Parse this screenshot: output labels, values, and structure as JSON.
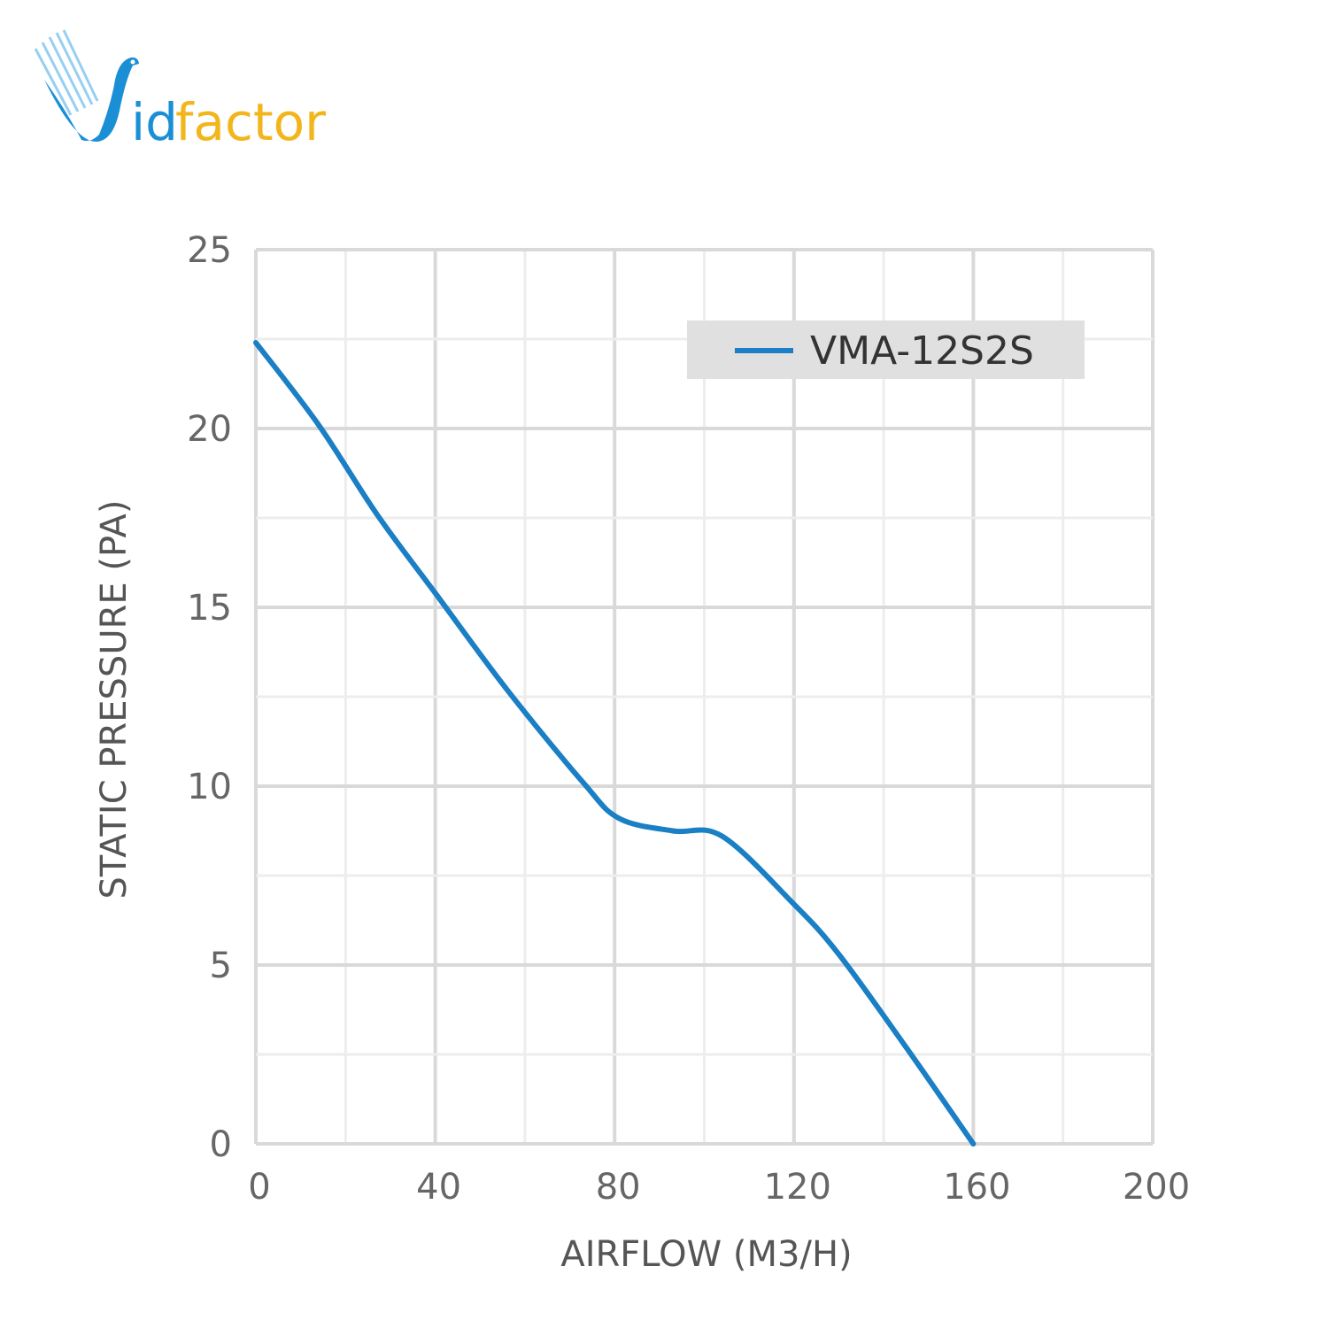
{
  "logo": {
    "text_blue": "id",
    "text_gold": "factor",
    "full": "Vidfactor",
    "colors": {
      "blue": "#1a8fd6",
      "gold": "#f2b61c"
    }
  },
  "chart_data": {
    "type": "line",
    "title": "",
    "xlabel": "AIRFLOW (M3/H)",
    "ylabel": "STATIC PRESSURE (PA)",
    "xlim": [
      0,
      200
    ],
    "ylim": [
      0,
      25
    ],
    "xticks": [
      0,
      40,
      80,
      120,
      160,
      200
    ],
    "yticks": [
      0,
      5,
      10,
      15,
      20,
      25
    ],
    "grid": true,
    "legend_position": "top-right",
    "series": [
      {
        "name": "VMA-12S2S",
        "color": "#1a7fc4",
        "x": [
          0,
          14,
          27,
          40,
          56,
          73,
          81,
          93,
          104,
          120,
          130,
          145,
          160
        ],
        "y": [
          22.4,
          20.1,
          17.6,
          15.4,
          12.7,
          10.1,
          9.1,
          8.75,
          8.6,
          6.7,
          5.3,
          2.7,
          0
        ]
      }
    ]
  }
}
